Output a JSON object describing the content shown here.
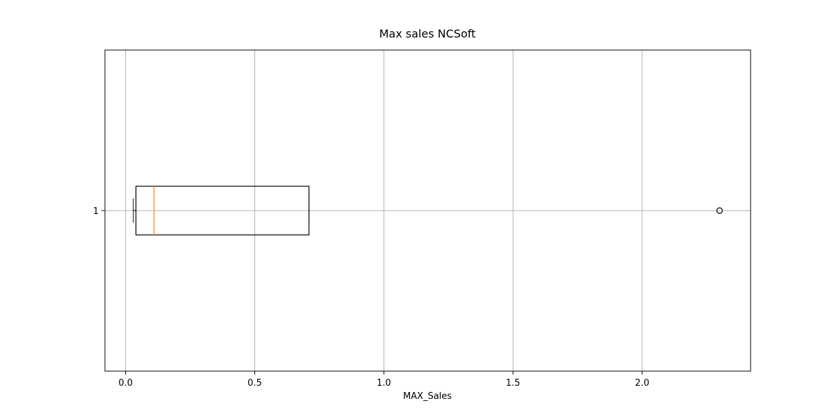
{
  "chart_data": {
    "type": "boxplot",
    "orientation": "horizontal",
    "title": "Max sales NCSoft",
    "xlabel": "MAX_Sales",
    "ylabel": "",
    "xlim": [
      -0.08,
      2.42
    ],
    "x_ticks": [
      {
        "value": 0.0,
        "label": "0.0"
      },
      {
        "value": 0.5,
        "label": "0.5"
      },
      {
        "value": 1.0,
        "label": "1.0"
      },
      {
        "value": 1.5,
        "label": "1.5"
      },
      {
        "value": 2.0,
        "label": "2.0"
      }
    ],
    "y_ticks": [
      {
        "value": 1,
        "label": "1"
      }
    ],
    "grid": true,
    "boxes": [
      {
        "position": 1,
        "whisker_low": 0.03,
        "q1": 0.04,
        "median": 0.11,
        "q3": 0.71,
        "whisker_high": 0.71,
        "outliers": [
          2.3
        ]
      }
    ],
    "colors": {
      "box": "#000000",
      "median": "#ff7f0e",
      "grid": "#b0b0b0",
      "outlier": "#000000"
    }
  }
}
